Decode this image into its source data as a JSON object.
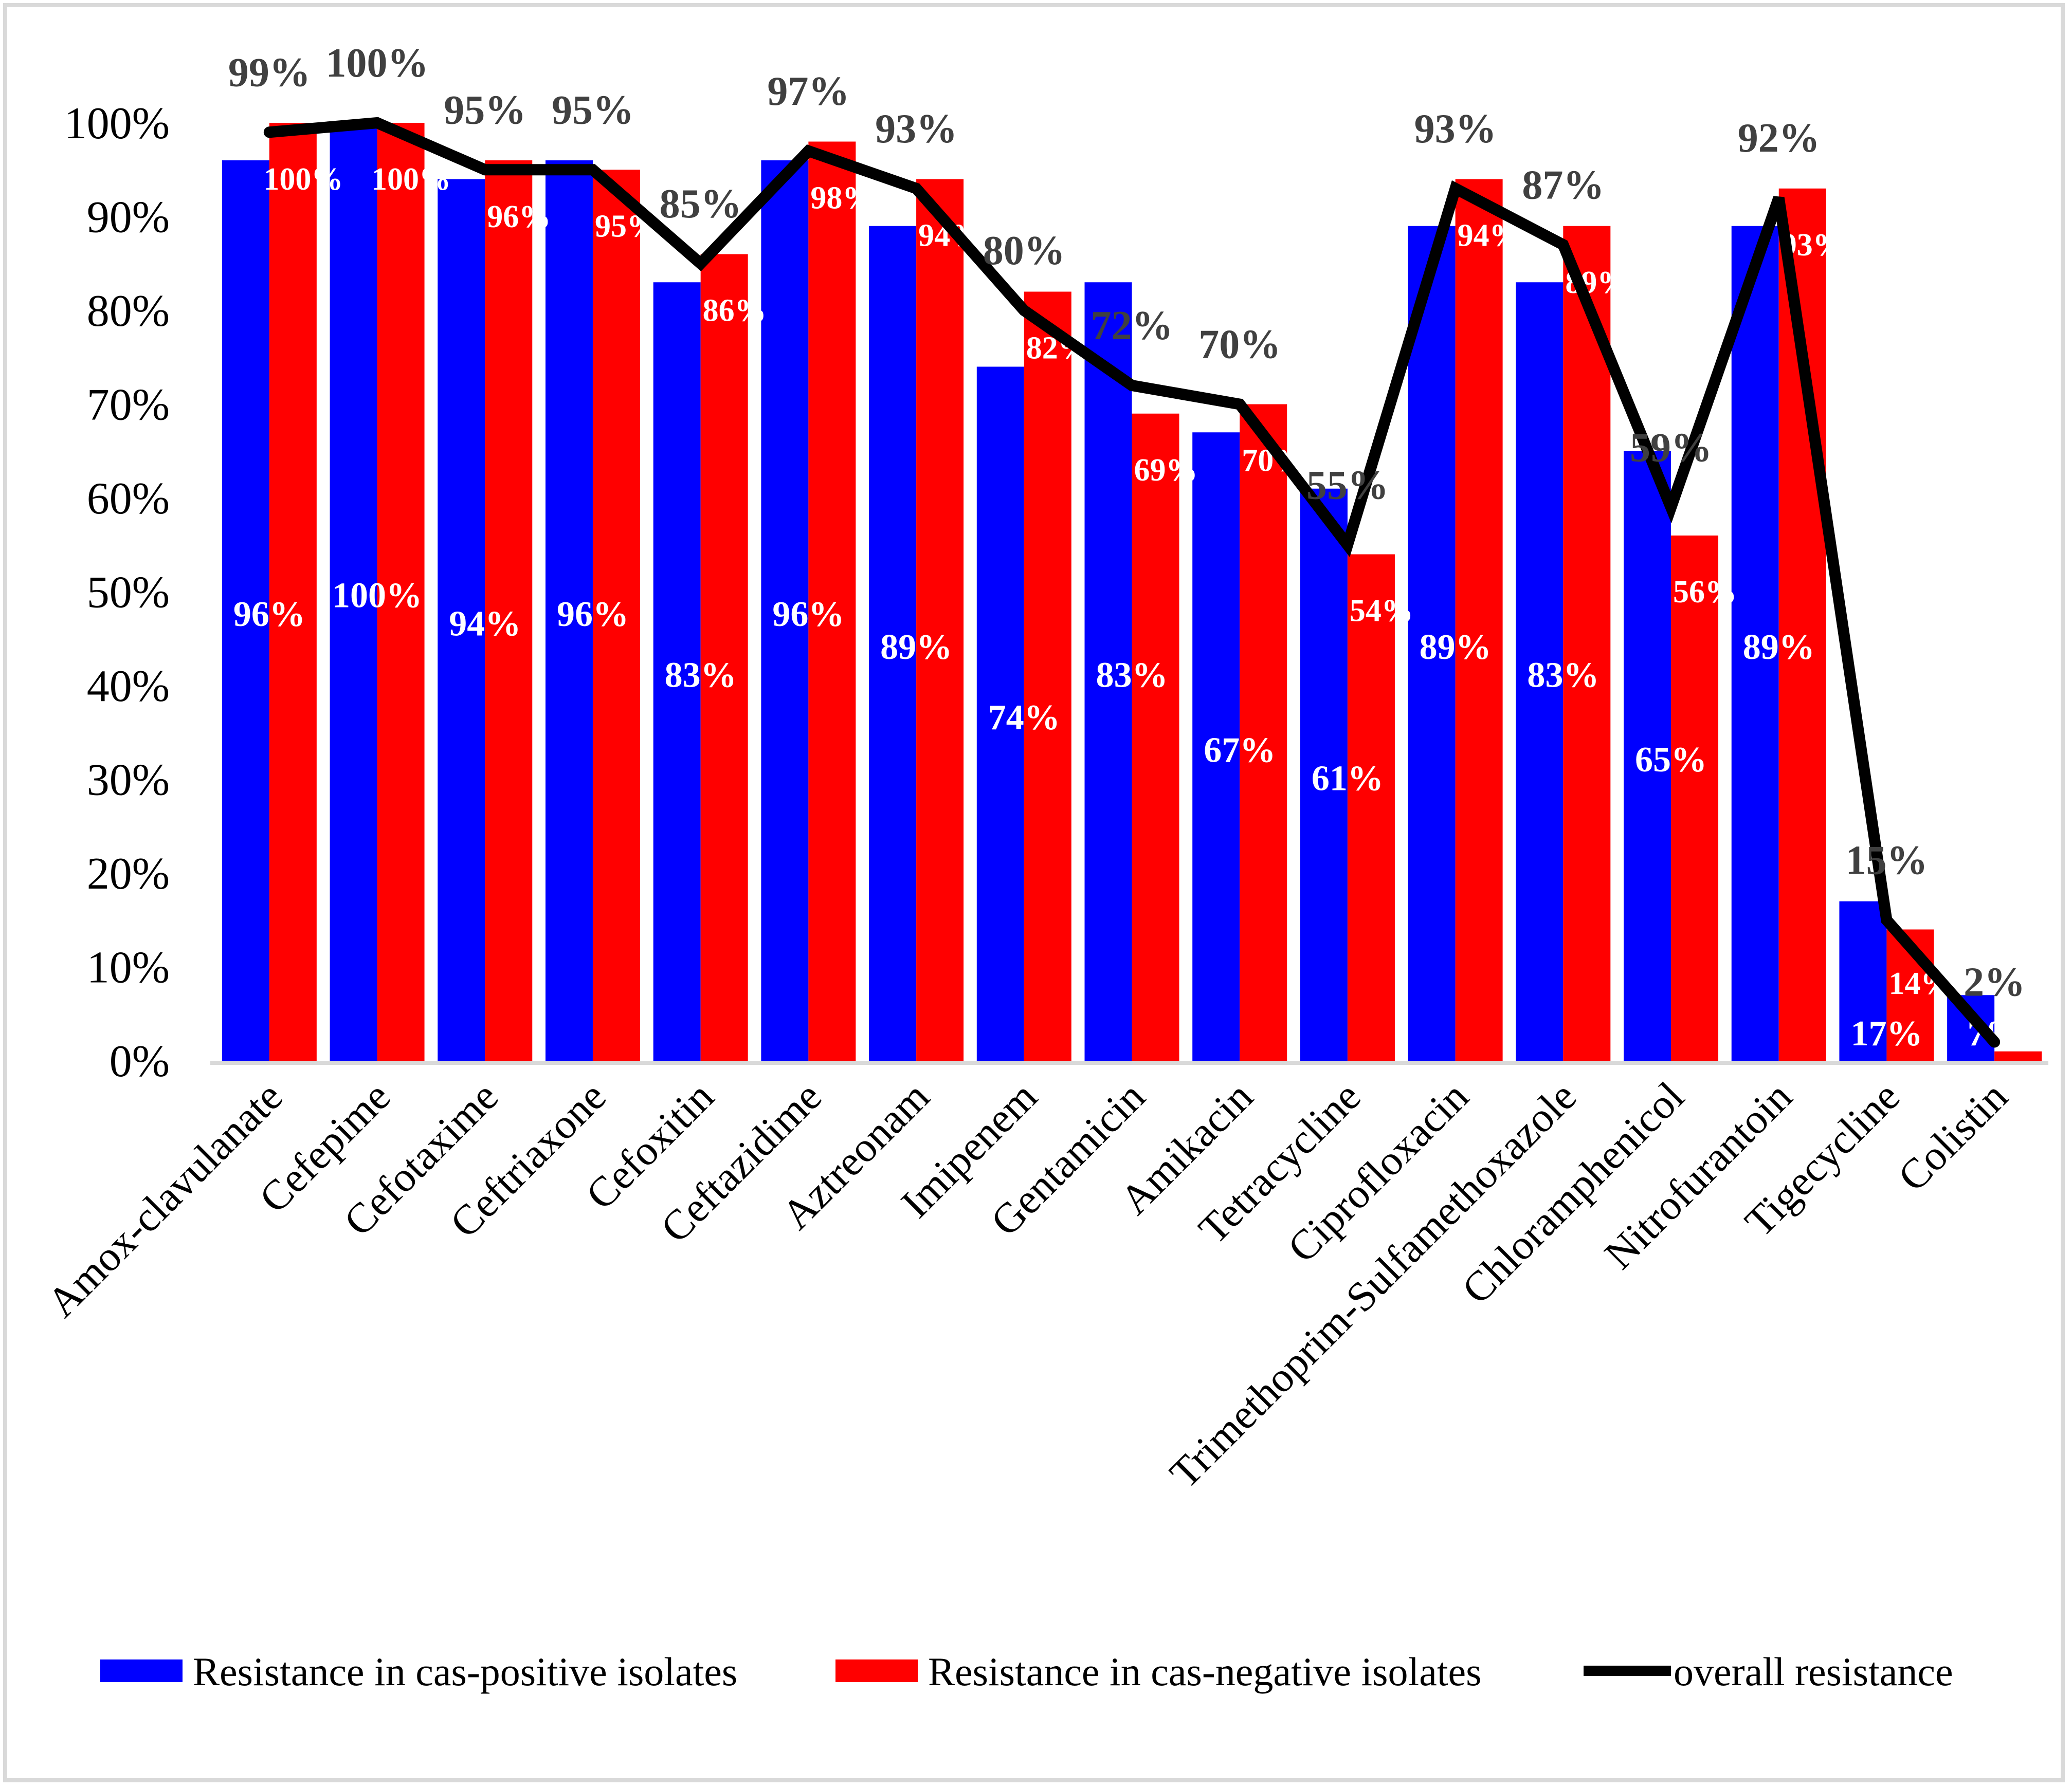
{
  "chart_data": {
    "type": "bar",
    "title": "",
    "xlabel": "",
    "ylabel": "",
    "ylim": [
      0,
      100
    ],
    "y_ticks": [
      "0%",
      "10%",
      "20%",
      "30%",
      "40%",
      "50%",
      "60%",
      "70%",
      "80%",
      "90%",
      "100%"
    ],
    "categories": [
      "Amox-clavulanate",
      "Cefepime",
      "Cefotaxime",
      "Ceftriaxone",
      "Cefoxitin",
      "Ceftazidime",
      "Aztreonam",
      "Imipenem",
      "Gentamicin",
      "Amikacin",
      "Tetracycline",
      "Ciprofloxacin",
      "Trimethoprim-Sulfamethoxazole",
      "Chloramphenicol",
      "Nitrofurantoin",
      "Tigecycline",
      "Colistin"
    ],
    "series": [
      {
        "name": "Resistance in cas-positive isolates",
        "type": "bar",
        "color": "#0000ff",
        "values": [
          96,
          100,
          94,
          96,
          83,
          96,
          89,
          74,
          83,
          67,
          61,
          89,
          83,
          65,
          89,
          17,
          7
        ],
        "labels": [
          "96%",
          "100%",
          "94%",
          "96%",
          "83%",
          "96%",
          "89%",
          "74%",
          "83%",
          "67%",
          "61%",
          "89%",
          "83%",
          "65%",
          "89%",
          "17%",
          "7%"
        ]
      },
      {
        "name": "Resistance in cas-negative isolates",
        "type": "bar",
        "color": "#ff0000",
        "values": [
          100,
          100,
          96,
          95,
          86,
          98,
          94,
          82,
          69,
          70,
          54,
          94,
          89,
          56,
          93,
          14,
          1
        ],
        "labels": [
          "100%",
          "100%",
          "96%",
          "95%",
          "86%",
          "98%",
          "94%",
          "82%",
          "69%",
          "70%",
          "54%",
          "94%",
          "89%",
          "56%",
          "93%",
          "14%",
          ""
        ]
      },
      {
        "name": "overall resistance",
        "type": "line",
        "color": "#000000",
        "values": [
          99,
          100,
          95,
          95,
          85,
          97,
          93,
          80,
          72,
          70,
          55,
          93,
          87,
          59,
          92,
          15,
          2
        ],
        "labels": [
          "99%",
          "100%",
          "95%",
          "95%",
          "85%",
          "97%",
          "93%",
          "80%",
          "72%",
          "70%",
          "55%",
          "93%",
          "87%",
          "59%",
          "92%",
          "15%",
          "2%"
        ]
      }
    ],
    "legend_position": "bottom",
    "grid": false
  }
}
